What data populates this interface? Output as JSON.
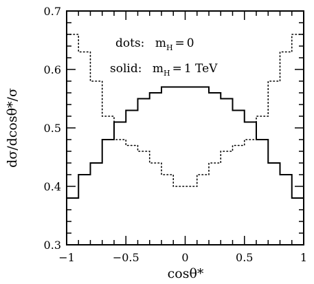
{
  "chart_data": {
    "type": "line",
    "title": "",
    "xlabel": "cosθ*",
    "ylabel": "dσ/dcosθ*/σ",
    "xlim": [
      -1,
      1
    ],
    "ylim": [
      0.3,
      0.7
    ],
    "x_ticks": [
      "−1",
      "−0.5",
      "0",
      "0.5",
      "1"
    ],
    "y_ticks": [
      "0.3",
      "0.4",
      "0.5",
      "0.6",
      "0.7"
    ],
    "bin_edges": [
      -1.0,
      -0.9,
      -0.8,
      -0.7,
      -0.6,
      -0.5,
      -0.4,
      -0.3,
      -0.2,
      -0.1,
      0.0,
      0.1,
      0.2,
      0.3,
      0.4,
      0.5,
      0.6,
      0.7,
      0.8,
      0.9,
      1.0
    ],
    "series": [
      {
        "name": "dots: m_H = 0",
        "style": "dotted",
        "values": [
          0.66,
          0.63,
          0.58,
          0.52,
          0.48,
          0.47,
          0.46,
          0.44,
          0.42,
          0.4,
          0.4,
          0.42,
          0.44,
          0.46,
          0.47,
          0.48,
          0.52,
          0.58,
          0.63,
          0.66
        ]
      },
      {
        "name": "solid: m_H = 1 TeV",
        "style": "solid",
        "values": [
          0.38,
          0.42,
          0.44,
          0.48,
          0.51,
          0.53,
          0.55,
          0.56,
          0.57,
          0.57,
          0.57,
          0.57,
          0.56,
          0.55,
          0.53,
          0.51,
          0.48,
          0.44,
          0.42,
          0.38
        ]
      }
    ],
    "legend": {
      "dots_prefix": "dots:",
      "dots_value": "0",
      "solid_prefix": "solid:",
      "solid_value": "1 TeV",
      "mass_symbol": "m",
      "mass_subscript": "H",
      "equals": "="
    },
    "grid": false,
    "legend_position": "top-center"
  }
}
